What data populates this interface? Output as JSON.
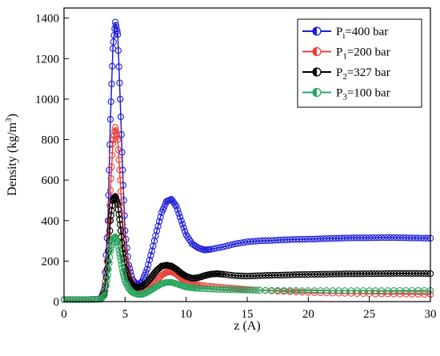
{
  "chart_data": {
    "type": "line",
    "title": "",
    "xlabel": "z (A)",
    "ylabel_main": "Density (kg/m",
    "ylabel_sup": "3",
    "ylabel_close": ")",
    "xlim": [
      0,
      30
    ],
    "ylim": [
      0,
      1450
    ],
    "xticks": [
      0,
      5,
      10,
      15,
      20,
      25,
      30
    ],
    "yticks": [
      0,
      200,
      400,
      600,
      800,
      1000,
      1200,
      1400
    ],
    "grid": false,
    "legend_position": "top-right",
    "series": [
      {
        "name_main": "P",
        "name_sub": "i",
        "name_rest": "=400 bar",
        "color": "#1f1fd6",
        "x": [
          0,
          1,
          2,
          3,
          3.3,
          3.6,
          3.8,
          4.0,
          4.2,
          4.4,
          4.6,
          4.8,
          5.0,
          5.3,
          5.6,
          6.0,
          6.4,
          6.8,
          7.2,
          7.6,
          8.0,
          8.4,
          8.8,
          9.2,
          9.6,
          10.0,
          10.5,
          11,
          11.5,
          12,
          13,
          14,
          15,
          16,
          17,
          18,
          19,
          20,
          21,
          22,
          23,
          24,
          25,
          26,
          27,
          28,
          29,
          30
        ],
        "y": [
          10,
          10,
          10,
          12,
          60,
          400,
          900,
          1250,
          1380,
          1320,
          1000,
          650,
          350,
          180,
          110,
          80,
          100,
          160,
          250,
          350,
          440,
          495,
          505,
          470,
          400,
          330,
          285,
          265,
          255,
          258,
          270,
          285,
          295,
          300,
          302,
          305,
          307,
          308,
          310,
          312,
          314,
          315,
          315,
          316,
          316,
          315,
          314,
          313
        ]
      },
      {
        "name_main": "P",
        "name_sub": "1",
        "name_rest": "=200 bar",
        "color": "#e8403a",
        "x": [
          0,
          1,
          2,
          3,
          3.3,
          3.6,
          3.8,
          4.0,
          4.2,
          4.4,
          4.6,
          4.8,
          5.0,
          5.3,
          5.6,
          6.0,
          6.4,
          6.8,
          7.2,
          7.6,
          8.0,
          8.4,
          8.8,
          9.2,
          9.6,
          10.0,
          10.5,
          11,
          12,
          13,
          14,
          15,
          16,
          18,
          20,
          22,
          24,
          26,
          28,
          30
        ],
        "y": [
          10,
          10,
          10,
          12,
          50,
          250,
          550,
          780,
          860,
          800,
          600,
          380,
          230,
          130,
          80,
          55,
          50,
          60,
          80,
          105,
          130,
          145,
          148,
          135,
          115,
          100,
          90,
          82,
          75,
          70,
          65,
          60,
          56,
          50,
          45,
          42,
          40,
          38,
          37,
          36
        ]
      },
      {
        "name_main": "P",
        "name_sub": "2",
        "name_rest": "=327 bar",
        "color": "#000000",
        "x": [
          0,
          1,
          2,
          3,
          3.3,
          3.6,
          3.8,
          4.0,
          4.2,
          4.4,
          4.6,
          4.8,
          5.0,
          5.3,
          5.6,
          6.0,
          6.4,
          6.8,
          7.2,
          7.6,
          8.0,
          8.4,
          8.8,
          9.2,
          9.6,
          10.0,
          10.5,
          11,
          11.5,
          12,
          12.5,
          13,
          14,
          15,
          16,
          17,
          18,
          19,
          20,
          21,
          22,
          23,
          24,
          25,
          26,
          27,
          28,
          29,
          30
        ],
        "y": [
          10,
          10,
          10,
          12,
          40,
          200,
          400,
          500,
          520,
          480,
          380,
          260,
          170,
          110,
          80,
          70,
          75,
          95,
          125,
          155,
          175,
          180,
          175,
          160,
          140,
          125,
          115,
          118,
          128,
          135,
          138,
          135,
          128,
          126,
          128,
          130,
          131,
          133,
          134,
          135,
          136,
          137,
          137,
          138,
          138,
          139,
          139,
          139,
          138
        ]
      },
      {
        "name_main": "P",
        "name_sub": "3",
        "name_rest": "=100 bar",
        "color": "#2aa55f",
        "x": [
          0,
          1,
          2,
          3,
          3.3,
          3.6,
          3.8,
          4.0,
          4.2,
          4.4,
          4.6,
          4.8,
          5.0,
          5.3,
          5.6,
          6.0,
          6.4,
          6.8,
          7.2,
          7.6,
          8.0,
          8.4,
          8.8,
          9.2,
          9.6,
          10.0,
          10.5,
          11,
          12,
          13,
          14,
          15,
          16,
          18,
          20,
          22,
          24,
          26,
          28,
          30
        ],
        "y": [
          10,
          10,
          10,
          12,
          30,
          130,
          250,
          310,
          320,
          290,
          220,
          150,
          100,
          65,
          45,
          35,
          35,
          45,
          60,
          75,
          88,
          95,
          95,
          88,
          80,
          72,
          68,
          65,
          62,
          60,
          58,
          57,
          56,
          55,
          54,
          54,
          54,
          54,
          55,
          55
        ]
      }
    ]
  }
}
